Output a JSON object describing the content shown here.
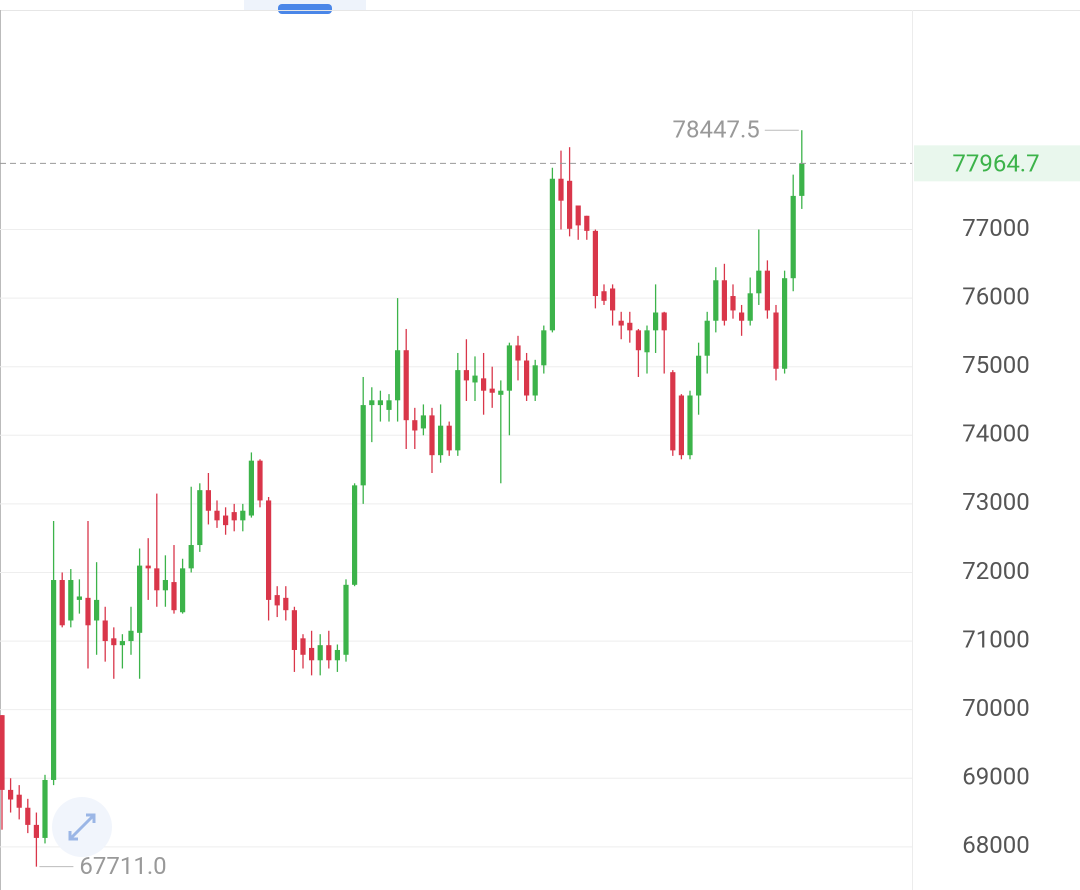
{
  "chart_data": {
    "type": "candlestick",
    "up_color": "#3cb34a",
    "down_color": "#d9364a",
    "grid": true,
    "ylim": [
      67400,
      80200
    ],
    "yticks": [
      68000,
      69000,
      70000,
      71000,
      72000,
      73000,
      74000,
      75000,
      76000,
      77000
    ],
    "last_price": 77964.7,
    "high_label": 78447.5,
    "low_label": {
      "value": 67711,
      "label": "67711.0"
    },
    "open": [
      69920,
      68830,
      68760,
      68570,
      68320,
      68130,
      68975,
      71890,
      71300,
      71600,
      71630,
      71300,
      71300,
      71040,
      70940,
      71000,
      71120,
      72100,
      72060,
      71740,
      71860,
      71420,
      72060,
      72400,
      73200,
      72900,
      72830,
      72880,
      72760,
      72830,
      73630,
      73050,
      71670,
      71630,
      71450,
      71040,
      70900,
      70720,
      70940,
      70720,
      70800,
      71820,
      73270,
      74440,
      74440,
      74370,
      74510,
      75240,
      74220,
      74100,
      74290,
      73710,
      74140,
      73780,
      74950,
      74770,
      74830,
      74680,
      74590,
      74650,
      75310,
      75090,
      74580,
      75020,
      75530,
      77740,
      77710,
      77350,
      77200,
      76980,
      76100,
      76140,
      75670,
      75640,
      75530,
      75210,
      75530,
      75790,
      74920,
      74580,
      73710,
      74580,
      75160,
      75670,
      76260,
      76030,
      75790,
      75670,
      76070,
      76400,
      75790,
      74970,
      76290,
      77490
    ],
    "high": [
      69920,
      69000,
      68900,
      68700,
      68500,
      69050,
      72750,
      72000,
      72050,
      71900,
      72750,
      72150,
      71500,
      71200,
      71100,
      71500,
      72350,
      72500,
      73150,
      72250,
      72400,
      72200,
      73250,
      73300,
      73450,
      73050,
      72950,
      73000,
      73000,
      73750,
      73650,
      73100,
      71800,
      71800,
      71500,
      71100,
      71150,
      71100,
      71150,
      70950,
      71900,
      73300,
      74850,
      74700,
      74650,
      74600,
      76000,
      75550,
      74400,
      74450,
      74400,
      74450,
      74200,
      75200,
      75400,
      75150,
      75200,
      75000,
      74800,
      75350,
      75450,
      75200,
      75100,
      75600,
      77900,
      78150,
      78200,
      77350,
      77200,
      77000,
      76200,
      76200,
      75800,
      75800,
      75550,
      75600,
      76200,
      75800,
      74950,
      74600,
      74650,
      75350,
      75800,
      76450,
      76500,
      76200,
      75900,
      76300,
      77000,
      76550,
      75900,
      76400,
      77800,
      78447.5
    ],
    "low": [
      68250,
      68500,
      68400,
      68200,
      67711,
      68050,
      68900,
      71200,
      71200,
      71400,
      70600,
      70800,
      70700,
      70450,
      70600,
      70800,
      70450,
      71600,
      71500,
      71500,
      71400,
      71400,
      72000,
      72300,
      72700,
      72650,
      72550,
      72600,
      72600,
      72800,
      72950,
      71300,
      71350,
      71300,
      70550,
      70600,
      70500,
      70500,
      70600,
      70550,
      70700,
      71800,
      73000,
      73900,
      74200,
      74200,
      74200,
      73800,
      73800,
      74000,
      73450,
      73600,
      73700,
      73700,
      74500,
      74500,
      74300,
      74400,
      73300,
      74000,
      74800,
      74500,
      74500,
      74900,
      75500,
      77000,
      76900,
      76850,
      76850,
      75850,
      75900,
      75600,
      75400,
      75350,
      74850,
      74900,
      75200,
      74900,
      73700,
      73650,
      73650,
      74300,
      74900,
      75500,
      75600,
      75700,
      75450,
      75600,
      75900,
      75700,
      74800,
      74900,
      76100,
      77300
    ],
    "close": [
      68830,
      68690,
      68570,
      68320,
      68130,
      68975,
      71890,
      71230,
      71890,
      71650,
      71230,
      71600,
      71000,
      70940,
      71000,
      71150,
      72100,
      72060,
      71740,
      71890,
      71450,
      72060,
      72400,
      73200,
      72900,
      72760,
      72690,
      72760,
      72900,
      73630,
      73050,
      71600,
      71520,
      71450,
      70870,
      70800,
      70720,
      70940,
      70720,
      70870,
      71820,
      73270,
      74440,
      74510,
      74510,
      74510,
      75240,
      74220,
      74070,
      74290,
      73710,
      74140,
      73780,
      74950,
      74800,
      74870,
      74650,
      74620,
      74650,
      75310,
      75090,
      74580,
      75020,
      75530,
      77740,
      77420,
      77010,
      77060,
      76980,
      76030,
      75960,
      75820,
      75600,
      75530,
      75240,
      75530,
      75790,
      75530,
      73780,
      73710,
      74580,
      75160,
      75670,
      76260,
      75670,
      75820,
      75670,
      76070,
      76400,
      75820,
      74970,
      76290,
      77490,
      77964.7
    ]
  }
}
